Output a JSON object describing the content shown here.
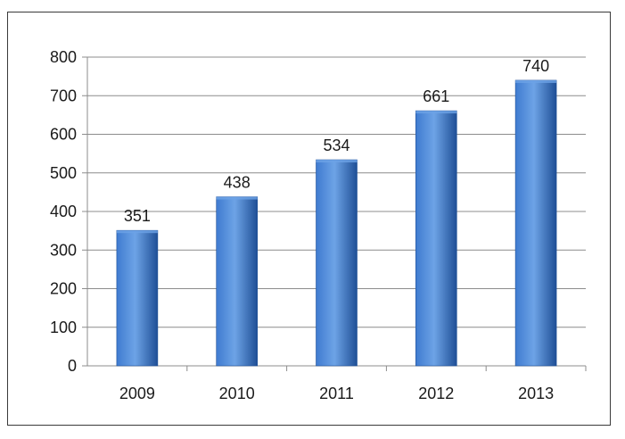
{
  "chart_data": {
    "type": "bar",
    "title": "",
    "xlabel": "",
    "ylabel": "",
    "categories": [
      "2009",
      "2010",
      "2011",
      "2012",
      "2013"
    ],
    "values": [
      351,
      438,
      534,
      661,
      740
    ],
    "data_labels": [
      "351",
      "438",
      "534",
      "661",
      "740"
    ],
    "y_ticks": [
      0,
      100,
      200,
      300,
      400,
      500,
      600,
      700,
      800
    ],
    "y_tick_labels": [
      "0",
      "100",
      "200",
      "300",
      "400",
      "500",
      "600",
      "700",
      "800"
    ],
    "ylim": [
      0,
      800
    ],
    "grid": true,
    "legend": "none",
    "colors": {
      "bar_light": "#6da3e6",
      "bar_mid": "#3f7bd0",
      "bar_dark": "#1f4f96",
      "gridline": "#8c8c8c",
      "axis": "#8c8c8c"
    }
  }
}
